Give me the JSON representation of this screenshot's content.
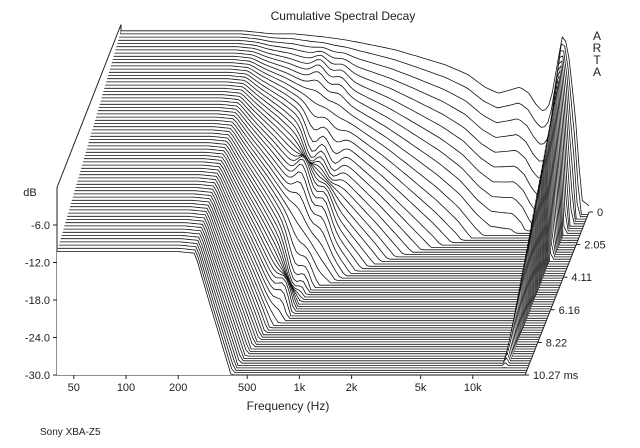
{
  "chart_data": {
    "type": "waterfall",
    "title": "Cumulative Spectral Decay",
    "watermark": "ARTA",
    "xlabel": "Frequency (Hz)",
    "ylabel": "dB",
    "zlabel_unit": "ms",
    "x_scale": "log",
    "xlim": [
      40,
      20000
    ],
    "ylim": [
      -30,
      0
    ],
    "time_lim": [
      0,
      10.27
    ],
    "x_ticks": [
      {
        "value": 50,
        "label": "50"
      },
      {
        "value": 100,
        "label": "100"
      },
      {
        "value": 200,
        "label": "200"
      },
      {
        "value": 500,
        "label": "500"
      },
      {
        "value": 1000,
        "label": "1k"
      },
      {
        "value": 2000,
        "label": "2k"
      },
      {
        "value": 5000,
        "label": "5k"
      },
      {
        "value": 10000,
        "label": "10k"
      }
    ],
    "y_ticks": [
      {
        "value": -6,
        "label": "-6.0"
      },
      {
        "value": -12,
        "label": "-12.0"
      },
      {
        "value": -18,
        "label": "-18.0"
      },
      {
        "value": -24,
        "label": "-24.0"
      },
      {
        "value": -30,
        "label": "-30.0"
      }
    ],
    "time_ticks": [
      {
        "value": 0,
        "label": "0"
      },
      {
        "value": 2.05,
        "label": "2.05"
      },
      {
        "value": 4.11,
        "label": "4.11"
      },
      {
        "value": 6.16,
        "label": "6.16"
      },
      {
        "value": 8.22,
        "label": "8.22"
      },
      {
        "value": 10.27,
        "label": "10.27 ms"
      }
    ],
    "slice_count": 70,
    "initial_response": {
      "freq": [
        40,
        60,
        100,
        150,
        200,
        300,
        400,
        600,
        800,
        1000,
        1500,
        2000,
        3000,
        4000,
        5000,
        6000,
        7000,
        8000,
        9000,
        10000,
        11000,
        12000,
        13000,
        14000,
        15000,
        16000,
        17000,
        18000,
        20000
      ],
      "db": [
        -1,
        -1,
        -1,
        -1,
        -1,
        -1.5,
        -1.5,
        -2,
        -2.5,
        -3,
        -4,
        -5,
        -6.5,
        -8,
        -10,
        -11,
        -10.5,
        -10,
        -11,
        -13,
        -14,
        -12.5,
        -7,
        -2,
        -3,
        -10,
        -17,
        -28,
        -29
      ]
    },
    "notes": [
      {
        "text": "Sony XBA-Z5"
      }
    ]
  }
}
